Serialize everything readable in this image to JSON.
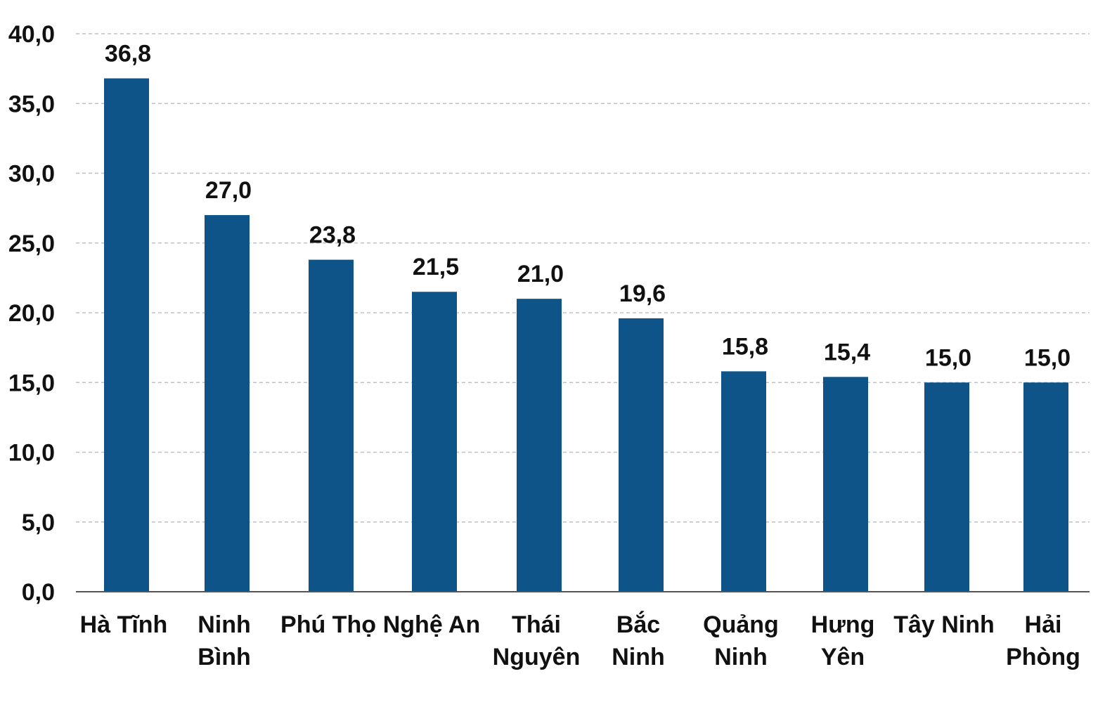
{
  "chart_data": {
    "type": "bar",
    "title": "",
    "xlabel": "",
    "ylabel": "",
    "categories": [
      [
        "Hà Tĩnh"
      ],
      [
        "Ninh",
        "Bình"
      ],
      [
        "Phú Thọ"
      ],
      [
        "Nghệ An"
      ],
      [
        "Thái",
        "Nguyên"
      ],
      [
        "Bắc",
        "Ninh"
      ],
      [
        "Quảng",
        "Ninh"
      ],
      [
        "Hưng",
        "Yên"
      ],
      [
        "Tây Ninh"
      ],
      [
        "Hải",
        "Phòng"
      ]
    ],
    "values": [
      36.8,
      27.0,
      23.8,
      21.5,
      21.0,
      19.6,
      15.8,
      15.4,
      15.0,
      15.0
    ],
    "data_labels": [
      "36,8",
      "27,0",
      "23,8",
      "21,5",
      "21,0",
      "19,6",
      "15,8",
      "15,4",
      "15,0",
      "15,0"
    ],
    "ylim": [
      0,
      40
    ],
    "yticks": [
      0,
      5,
      10,
      15,
      20,
      25,
      30,
      35,
      40
    ],
    "ytick_labels": [
      "0,0",
      "5,0",
      "10,0",
      "15,0",
      "20,0",
      "25,0",
      "30,0",
      "35,0",
      "40,0"
    ],
    "grid": true,
    "grid_style": "dashed",
    "bar_color": "#0e5488",
    "grid_color": "#c0c0c0",
    "axis_color": "#555555"
  }
}
